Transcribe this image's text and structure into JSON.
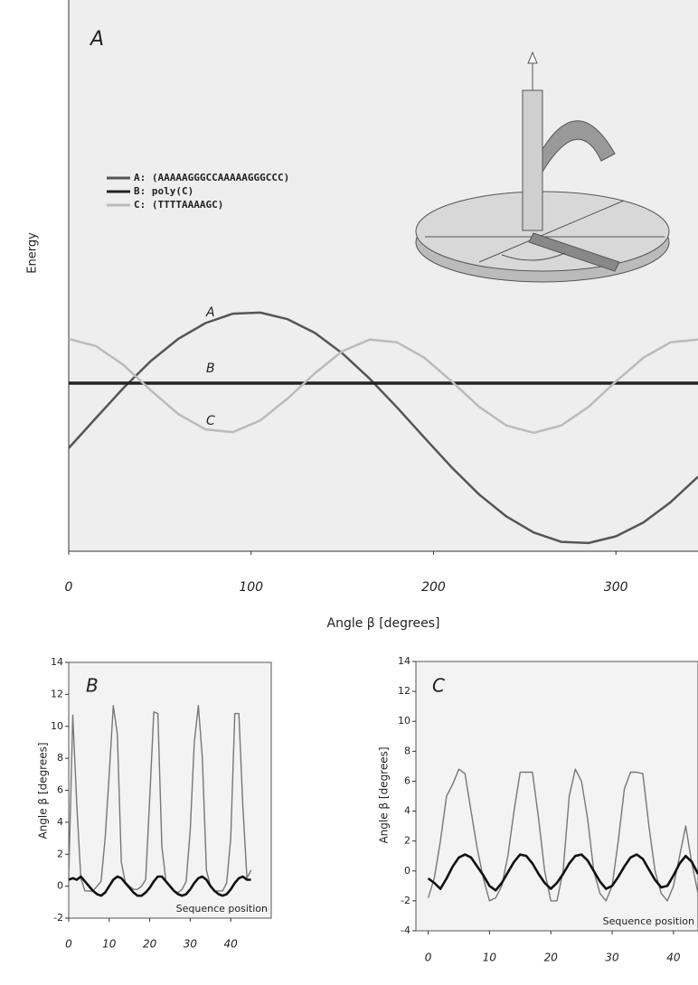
{
  "chart_data": [
    {
      "type": "line",
      "panel_label": "A",
      "ylabel": "Energy",
      "xlabel": "Angle  β [degrees]",
      "x": [
        0,
        15,
        30,
        45,
        60,
        75,
        90,
        105,
        120,
        135,
        150,
        165,
        180,
        195,
        210,
        225,
        240,
        255,
        270,
        285,
        300,
        315,
        330,
        345
      ],
      "xlim": [
        0,
        345
      ],
      "xticks": [
        0,
        100,
        200,
        300
      ],
      "ylim": [
        0,
        10
      ],
      "series": [
        {
          "name": "A: (AAAAAGGGCCAAAAAGGGCCC)",
          "color": "#555555",
          "values": [
            1.87,
            2.42,
            2.96,
            3.45,
            3.85,
            4.14,
            4.31,
            4.33,
            4.21,
            3.96,
            3.59,
            3.13,
            2.61,
            2.06,
            1.52,
            1.03,
            0.63,
            0.34,
            0.17,
            0.15,
            0.27,
            0.52,
            0.89,
            1.35
          ]
        },
        {
          "name": "B: poly(C)",
          "color": "#222222",
          "values": [
            3.05,
            3.05,
            3.05,
            3.05,
            3.05,
            3.05,
            3.05,
            3.05,
            3.05,
            3.05,
            3.05,
            3.05,
            3.05,
            3.05,
            3.05,
            3.05,
            3.05,
            3.05,
            3.05,
            3.05,
            3.05,
            3.05,
            3.05,
            3.05
          ]
        },
        {
          "name": "C: (TTTTAAAAGC)",
          "color": "#bbbbbb",
          "values": [
            3.85,
            3.72,
            3.38,
            2.92,
            2.49,
            2.21,
            2.16,
            2.37,
            2.77,
            3.23,
            3.63,
            3.84,
            3.79,
            3.51,
            3.08,
            2.62,
            2.28,
            2.15,
            2.28,
            2.62,
            3.08,
            3.51,
            3.79,
            3.84
          ]
        }
      ],
      "annotations": [
        "A",
        "B",
        "C"
      ]
    },
    {
      "type": "line",
      "panel_label": "B",
      "ylabel": "Angle β [degrees]",
      "annotation": "Sequence position",
      "x": [
        0,
        1,
        2,
        3,
        4,
        5,
        6,
        7,
        8,
        9,
        10,
        11,
        12,
        13,
        14,
        15,
        16,
        17,
        18,
        19,
        20,
        21,
        22,
        23,
        24,
        25,
        26,
        27,
        28,
        29,
        30,
        31,
        32,
        33,
        34,
        35,
        36,
        37,
        38,
        39,
        40,
        41,
        42,
        43,
        44,
        45
      ],
      "xlim": [
        0,
        50
      ],
      "xticks": [
        0,
        10,
        20,
        30,
        40
      ],
      "ylim": [
        -2,
        14
      ],
      "yticks": [
        -2,
        0,
        2,
        4,
        6,
        8,
        10,
        12,
        14
      ],
      "series": [
        {
          "color": "#777777",
          "values": [
            0.5,
            10.7,
            5,
            0.5,
            -0.3,
            -0.3,
            -0.3,
            0,
            0.3,
            3,
            7,
            11.3,
            9.5,
            1.5,
            0.2,
            0,
            -0.2,
            -0.2,
            0,
            0.4,
            5.5,
            10.9,
            10.8,
            2.5,
            0.3,
            0,
            -0.3,
            -0.4,
            -0.2,
            0.3,
            3.5,
            9,
            11.3,
            8,
            1,
            0,
            -0.3,
            -0.3,
            -0.3,
            0.2,
            3,
            10.8,
            10.8,
            5,
            0.5,
            1
          ]
        },
        {
          "color": "#111111",
          "values": [
            0.4,
            0.5,
            0.4,
            0.6,
            0.3,
            0,
            -0.3,
            -0.5,
            -0.6,
            -0.4,
            0,
            0.4,
            0.6,
            0.5,
            0.2,
            -0.1,
            -0.4,
            -0.6,
            -0.6,
            -0.4,
            -0.1,
            0.3,
            0.6,
            0.6,
            0.3,
            0,
            -0.3,
            -0.5,
            -0.6,
            -0.5,
            -0.2,
            0.2,
            0.5,
            0.6,
            0.4,
            0,
            -0.3,
            -0.5,
            -0.6,
            -0.5,
            -0.2,
            0.2,
            0.5,
            0.6,
            0.4,
            0.4
          ]
        }
      ]
    },
    {
      "type": "line",
      "panel_label": "C",
      "ylabel": "Angle β [degrees]",
      "annotation": "Sequence position",
      "x": [
        0,
        1,
        2,
        3,
        4,
        5,
        6,
        7,
        8,
        9,
        10,
        11,
        12,
        13,
        14,
        15,
        16,
        17,
        18,
        19,
        20,
        21,
        22,
        23,
        24,
        25,
        26,
        27,
        28,
        29,
        30,
        31,
        32,
        33,
        34,
        35,
        36,
        37,
        38,
        39,
        40,
        41,
        42,
        43,
        44
      ],
      "xlim": [
        -2,
        44
      ],
      "xticks": [
        0,
        10,
        20,
        30,
        40
      ],
      "ylim": [
        -4,
        14
      ],
      "yticks": [
        -4,
        -2,
        0,
        2,
        4,
        6,
        8,
        10,
        12,
        14
      ],
      "series": [
        {
          "color": "#777777",
          "values": [
            -1.8,
            -0.5,
            2,
            5,
            5.8,
            6.8,
            6.5,
            4,
            1.5,
            -0.5,
            -2,
            -1.8,
            -1,
            1,
            4,
            6.6,
            6.6,
            6.6,
            3.5,
            0,
            -2,
            -2,
            0,
            5,
            6.8,
            6,
            3.5,
            0,
            -1.5,
            -2,
            -1,
            2,
            5.5,
            6.6,
            6.6,
            6.5,
            3,
            0,
            -1.5,
            -2,
            -1,
            1,
            3,
            0.5,
            -1.5
          ]
        },
        {
          "color": "#111111",
          "values": [
            -0.5,
            -0.8,
            -1.2,
            -0.5,
            0.3,
            0.9,
            1.1,
            0.9,
            0.3,
            -0.3,
            -1,
            -1.3,
            -0.8,
            -0.1,
            0.6,
            1.1,
            1,
            0.5,
            -0.2,
            -0.8,
            -1.2,
            -0.8,
            -0.2,
            0.5,
            1,
            1.1,
            0.7,
            0,
            -0.7,
            -1.2,
            -1,
            -0.4,
            0.3,
            0.9,
            1.1,
            0.8,
            0.1,
            -0.6,
            -1.1,
            -1,
            -0.3,
            0.5,
            1,
            0.6,
            -0.2
          ]
        }
      ]
    }
  ]
}
